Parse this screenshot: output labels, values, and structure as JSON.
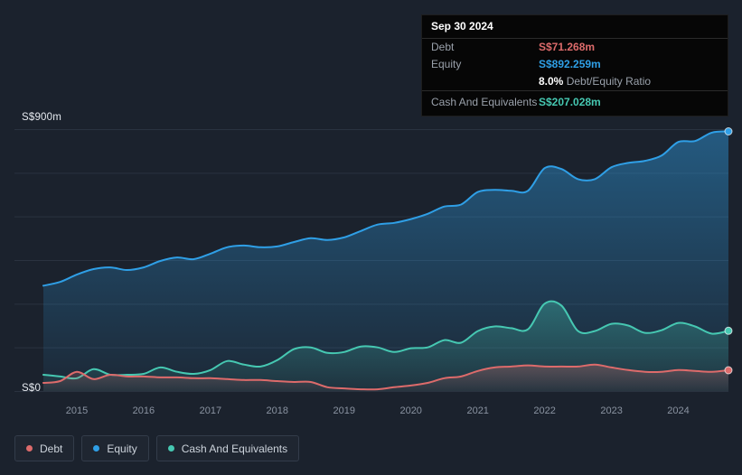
{
  "chart_data": {
    "type": "area",
    "x": [
      2014.5,
      2014.75,
      2015,
      2015.25,
      2015.5,
      2015.75,
      2016,
      2016.25,
      2016.5,
      2016.75,
      2017,
      2017.25,
      2017.5,
      2017.75,
      2018,
      2018.25,
      2018.5,
      2018.75,
      2019,
      2019.25,
      2019.5,
      2019.75,
      2020,
      2020.25,
      2020.5,
      2020.75,
      2021,
      2021.25,
      2021.5,
      2021.75,
      2022,
      2022.25,
      2022.5,
      2022.75,
      2023,
      2023.25,
      2023.5,
      2023.75,
      2024,
      2024.25,
      2024.5,
      2024.75
    ],
    "x_ticks": [
      2015,
      2016,
      2017,
      2018,
      2019,
      2020,
      2021,
      2022,
      2023,
      2024
    ],
    "xlim": [
      2014.5,
      2024.75
    ],
    "ylim": [
      0,
      900
    ],
    "gridlines": [
      0,
      150,
      300,
      450,
      600,
      750,
      900
    ],
    "grid": true,
    "ylabel_top": "S$900m",
    "ylabel_bottom": "S$0",
    "legend_position": "bottom-left",
    "series": [
      {
        "name": "Equity",
        "color": "#2f9fe6",
        "values": [
          362,
          375,
          400,
          419,
          425,
          416,
          425,
          447,
          459,
          453,
          472,
          494,
          500,
          494,
          497,
          512,
          525,
          519,
          528,
          550,
          572,
          578,
          591,
          609,
          634,
          641,
          684,
          691,
          688,
          688,
          766,
          763,
          728,
          728,
          769,
          784,
          791,
          809,
          856,
          859,
          888,
          892.259
        ]
      },
      {
        "name": "Cash And Equivalents",
        "color": "#46c8b2",
        "values": [
          56,
          50,
          44,
          75,
          56,
          56,
          59,
          81,
          66,
          59,
          72,
          103,
          91,
          84,
          106,
          144,
          150,
          131,
          134,
          153,
          150,
          134,
          147,
          150,
          175,
          166,
          206,
          222,
          216,
          212,
          300,
          294,
          206,
          206,
          231,
          225,
          200,
          209,
          234,
          222,
          197,
          207.028
        ]
      },
      {
        "name": "Debt",
        "color": "#dd6b6b",
        "values": [
          28,
          34,
          66,
          41,
          56,
          50,
          50,
          47,
          47,
          44,
          44,
          41,
          38,
          38,
          34,
          31,
          31,
          13,
          9,
          6,
          6,
          13,
          19,
          28,
          44,
          50,
          69,
          81,
          84,
          88,
          84,
          84,
          84,
          91,
          81,
          72,
          66,
          66,
          72,
          69,
          66,
          71.268
        ]
      }
    ]
  },
  "tooltip": {
    "date": "Sep 30 2024",
    "debt_label": "Debt",
    "debt_value": "S$71.268m",
    "equity_label": "Equity",
    "equity_value": "S$892.259m",
    "ratio_value": "8.0%",
    "ratio_label": "Debt/Equity Ratio",
    "cash_label": "Cash And Equivalents",
    "cash_value": "S$207.028m"
  },
  "legend": {
    "items": [
      {
        "label": "Debt"
      },
      {
        "label": "Equity"
      },
      {
        "label": "Cash And Equivalents"
      }
    ]
  }
}
